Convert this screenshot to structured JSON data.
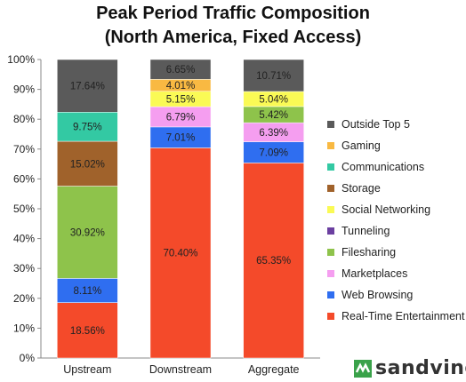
{
  "title_line1": "Peak Period Traffic Composition",
  "title_line2": "(North America, Fixed Access)",
  "brand": "sandvine",
  "brand_color": "#3aa24a",
  "chart_data": {
    "type": "bar",
    "stacked": true,
    "percent": true,
    "categories": [
      "Upstream",
      "Downstream",
      "Aggregate"
    ],
    "ylim": [
      0,
      100
    ],
    "yticks": [
      "0%",
      "10%",
      "20%",
      "30%",
      "40%",
      "50%",
      "60%",
      "70%",
      "80%",
      "90%",
      "100%"
    ],
    "grid": false,
    "legend_position": "right",
    "series": [
      {
        "name": "Real-Time Entertainment",
        "color": "#f44a2a",
        "values": [
          18.56,
          70.4,
          65.35
        ],
        "labels": [
          "18.56%",
          "70.40%",
          "65.35%"
        ]
      },
      {
        "name": "Web Browsing",
        "color": "#2f6ef0",
        "values": [
          8.11,
          7.01,
          7.09
        ],
        "labels": [
          "8.11%",
          "7.01%",
          "7.09%"
        ]
      },
      {
        "name": "Marketplaces",
        "color": "#f59ef0",
        "values": [
          0,
          6.79,
          6.39
        ],
        "labels": [
          "",
          "6.79%",
          "6.39%"
        ]
      },
      {
        "name": "Filesharing",
        "color": "#8ec34b",
        "values": [
          30.92,
          0,
          5.42
        ],
        "labels": [
          "30.92%",
          "",
          "5.42%"
        ]
      },
      {
        "name": "Tunneling",
        "color": "#6b3fa0",
        "values": [
          0,
          0,
          0
        ],
        "labels": [
          "",
          "",
          ""
        ]
      },
      {
        "name": "Social Networking",
        "color": "#fafa55",
        "values": [
          0,
          5.15,
          5.04
        ],
        "labels": [
          "",
          "5.15%",
          "5.04%"
        ]
      },
      {
        "name": "Storage",
        "color": "#a0622b",
        "values": [
          15.02,
          0,
          0
        ],
        "labels": [
          "15.02%",
          "",
          ""
        ]
      },
      {
        "name": "Communications",
        "color": "#33c9a3",
        "values": [
          9.75,
          0,
          0
        ],
        "labels": [
          "9.75%",
          "",
          ""
        ]
      },
      {
        "name": "Gaming",
        "color": "#f9b942",
        "values": [
          0,
          4.01,
          0
        ],
        "labels": [
          "",
          "4.01%",
          ""
        ]
      },
      {
        "name": "Outside Top 5",
        "color": "#5a5a5a",
        "values": [
          17.64,
          6.65,
          10.71
        ],
        "labels": [
          "17.64%",
          "6.65%",
          "10.71%"
        ]
      }
    ],
    "legend_order": [
      "Outside Top 5",
      "Gaming",
      "Communications",
      "Storage",
      "Social Networking",
      "Tunneling",
      "Filesharing",
      "Marketplaces",
      "Web Browsing",
      "Real-Time Entertainment"
    ]
  }
}
